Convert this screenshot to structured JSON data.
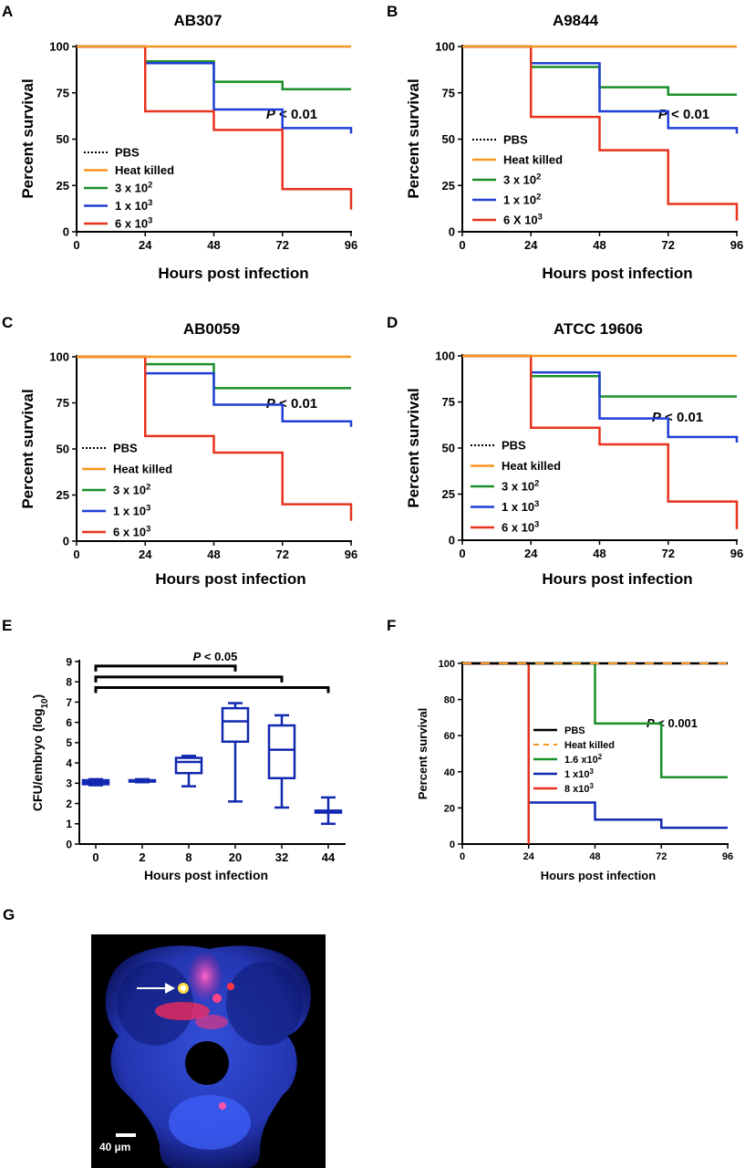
{
  "colors": {
    "pbs": "#000000",
    "heat_killed": "#F7941D",
    "green": "#1B8F2A",
    "blue": "#1F3FD6",
    "red": "#E8321E",
    "darkblue": "#1228B0"
  },
  "chart_data": [
    {
      "id": "A",
      "panel_letter": "A",
      "type": "line",
      "step": true,
      "title": "AB307",
      "xlabel": "Hours post infection",
      "ylabel": "Percent survival",
      "xlim": [
        0,
        96
      ],
      "ylim": [
        0,
        100
      ],
      "xticks": [
        "0",
        "24",
        "48",
        "72",
        "96"
      ],
      "yticks": [
        "0",
        "25",
        "50",
        "75",
        "100"
      ],
      "annotation": "P < 0.01",
      "legend_placement": "bottom-left",
      "series": [
        {
          "name": "PBS",
          "color_key": "pbs",
          "dashed": true,
          "points": [
            [
              0,
              100
            ],
            [
              96,
              100
            ]
          ]
        },
        {
          "name": "Heat killed",
          "color_key": "heat_killed",
          "points": [
            [
              0,
              100
            ],
            [
              96,
              100
            ]
          ]
        },
        {
          "name": "3 x 10",
          "sup": "2",
          "color_key": "green",
          "points": [
            [
              0,
              100
            ],
            [
              24,
              92
            ],
            [
              48,
              81
            ],
            [
              72,
              77
            ],
            [
              96,
              77
            ]
          ]
        },
        {
          "name": "1 x 10",
          "sup": "3",
          "color_key": "blue",
          "points": [
            [
              0,
              100
            ],
            [
              24,
              91
            ],
            [
              48,
              66
            ],
            [
              72,
              56
            ],
            [
              96,
              53
            ]
          ]
        },
        {
          "name": "6 x 10",
          "sup": "3",
          "color_key": "red",
          "points": [
            [
              0,
              100
            ],
            [
              24,
              65
            ],
            [
              48,
              55
            ],
            [
              72,
              23
            ],
            [
              96,
              12
            ]
          ]
        }
      ]
    },
    {
      "id": "B",
      "panel_letter": "B",
      "type": "line",
      "step": true,
      "title": "A9844",
      "xlabel": "Hours post infection",
      "ylabel": "Percent survival",
      "xlim": [
        0,
        96
      ],
      "ylim": [
        0,
        100
      ],
      "xticks": [
        "0",
        "24",
        "48",
        "72",
        "96"
      ],
      "yticks": [
        "0",
        "25",
        "50",
        "75",
        "100"
      ],
      "annotation": "P < 0.01",
      "legend_placement": "bottom-left",
      "series": [
        {
          "name": "PBS",
          "color_key": "pbs",
          "dashed": true,
          "points": [
            [
              0,
              100
            ],
            [
              96,
              100
            ]
          ]
        },
        {
          "name": "Heat killed",
          "color_key": "heat_killed",
          "points": [
            [
              0,
              100
            ],
            [
              96,
              100
            ]
          ]
        },
        {
          "name": "3 x 10",
          "sup": "2",
          "color_key": "green",
          "points": [
            [
              0,
              100
            ],
            [
              24,
              89
            ],
            [
              48,
              78
            ],
            [
              72,
              74
            ],
            [
              96,
              74
            ]
          ]
        },
        {
          "name": "1 x 10",
          "sup": "2",
          "color_key": "blue",
          "points": [
            [
              0,
              100
            ],
            [
              24,
              91
            ],
            [
              48,
              65
            ],
            [
              72,
              56
            ],
            [
              96,
              53
            ]
          ]
        },
        {
          "name": "6 X 10",
          "sup": "3",
          "color_key": "red",
          "points": [
            [
              0,
              100
            ],
            [
              24,
              62
            ],
            [
              48,
              44
            ],
            [
              72,
              15
            ],
            [
              96,
              6
            ]
          ]
        }
      ]
    },
    {
      "id": "C",
      "panel_letter": "C",
      "type": "line",
      "step": true,
      "title": "AB0059",
      "xlabel": "Hours post infection",
      "ylabel": "Percent survival",
      "xlim": [
        0,
        96
      ],
      "ylim": [
        0,
        100
      ],
      "xticks": [
        "0",
        "24",
        "48",
        "72",
        "96"
      ],
      "yticks": [
        "0",
        "25",
        "50",
        "75",
        "100"
      ],
      "annotation": "P < 0.01",
      "legend_placement": "bottom-left",
      "series": [
        {
          "name": "PBS",
          "color_key": "pbs",
          "dashed": true,
          "points": [
            [
              0,
              100
            ],
            [
              96,
              100
            ]
          ]
        },
        {
          "name": "Heat killed",
          "color_key": "heat_killed",
          "points": [
            [
              0,
              100
            ],
            [
              96,
              100
            ]
          ]
        },
        {
          "name": "3 x 10",
          "sup": "2",
          "color_key": "green",
          "points": [
            [
              0,
              100
            ],
            [
              24,
              96
            ],
            [
              48,
              83
            ],
            [
              72,
              83
            ],
            [
              96,
              83
            ]
          ]
        },
        {
          "name": "1 x 10",
          "sup": "3",
          "color_key": "blue",
          "points": [
            [
              0,
              100
            ],
            [
              24,
              91
            ],
            [
              48,
              74
            ],
            [
              72,
              65
            ],
            [
              96,
              62
            ]
          ]
        },
        {
          "name": "6 x 10",
          "sup": "3",
          "color_key": "red",
          "points": [
            [
              0,
              100
            ],
            [
              24,
              57
            ],
            [
              48,
              48
            ],
            [
              72,
              20
            ],
            [
              96,
              11
            ]
          ]
        }
      ]
    },
    {
      "id": "D",
      "panel_letter": "D",
      "type": "line",
      "step": true,
      "title": "ATCC 19606",
      "xlabel": "Hours post infection",
      "ylabel": "Percent survival",
      "xlim": [
        0,
        96
      ],
      "ylim": [
        0,
        100
      ],
      "xticks": [
        "0",
        "24",
        "48",
        "72",
        "96"
      ],
      "yticks": [
        "0",
        "25",
        "50",
        "75",
        "100"
      ],
      "annotation": "P < 0.01",
      "legend_placement": "bottom-left",
      "series": [
        {
          "name": "PBS",
          "color_key": "pbs",
          "dashed": true,
          "points": [
            [
              0,
              100
            ],
            [
              96,
              100
            ]
          ]
        },
        {
          "name": "Heat killed",
          "color_key": "heat_killed",
          "points": [
            [
              0,
              100
            ],
            [
              96,
              100
            ]
          ]
        },
        {
          "name": "3 x 10",
          "sup": "2",
          "color_key": "green",
          "points": [
            [
              0,
              100
            ],
            [
              24,
              89
            ],
            [
              48,
              78
            ],
            [
              72,
              78
            ],
            [
              96,
              78
            ]
          ]
        },
        {
          "name": "1 x 10",
          "sup": "3",
          "color_key": "blue",
          "points": [
            [
              0,
              100
            ],
            [
              24,
              91
            ],
            [
              48,
              66
            ],
            [
              72,
              56
            ],
            [
              96,
              53
            ]
          ]
        },
        {
          "name": "6 x 10",
          "sup": "3",
          "color_key": "red",
          "points": [
            [
              0,
              100
            ],
            [
              24,
              61
            ],
            [
              48,
              52
            ],
            [
              72,
              21
            ],
            [
              96,
              6
            ]
          ]
        }
      ]
    },
    {
      "id": "E",
      "panel_letter": "E",
      "type": "box",
      "xlabel": "Hours post infection",
      "ylabel": "CFU/embryo (log",
      "ylabel_sub": "10",
      "ylabel_end": ")",
      "ylim": [
        0,
        9
      ],
      "yticks": [
        "0",
        "1",
        "2",
        "3",
        "4",
        "5",
        "6",
        "7",
        "8",
        "9"
      ],
      "categories": [
        "0",
        "2",
        "8",
        "20",
        "32",
        "44"
      ],
      "annotation": "P < 0.05",
      "significance_brackets": [
        [
          "0",
          "20"
        ],
        [
          "0",
          "32"
        ],
        [
          "0",
          "44"
        ]
      ],
      "color_key": "darkblue",
      "boxes": [
        {
          "min": 2.9,
          "q1": 2.95,
          "median": 3.05,
          "q3": 3.15,
          "max": 3.2
        },
        {
          "min": 3.05,
          "q1": 3.08,
          "median": 3.12,
          "q3": 3.15,
          "max": 3.2
        },
        {
          "min": 2.85,
          "q1": 3.5,
          "median": 4.05,
          "q3": 4.25,
          "max": 4.35
        },
        {
          "min": 2.1,
          "q1": 5.05,
          "median": 6.05,
          "q3": 6.7,
          "max": 6.95
        },
        {
          "min": 1.8,
          "q1": 3.25,
          "median": 4.65,
          "q3": 5.85,
          "max": 6.35
        },
        {
          "min": 1.0,
          "q1": 1.55,
          "median": 1.6,
          "q3": 1.65,
          "max": 2.3
        }
      ]
    },
    {
      "id": "F",
      "panel_letter": "F",
      "type": "line",
      "step": true,
      "xlabel": "Hours post infection",
      "ylabel": "Percent survival",
      "xlim": [
        0,
        96
      ],
      "ylim": [
        0,
        100
      ],
      "xticks": [
        "0",
        "24",
        "48",
        "72",
        "96"
      ],
      "yticks": [
        "0",
        "20",
        "40",
        "60",
        "80",
        "100"
      ],
      "annotation": "P < 0.001",
      "legend_placement": "right-middle",
      "series": [
        {
          "name": "PBS",
          "color_key": "pbs",
          "points": [
            [
              0,
              100
            ],
            [
              96,
              100
            ]
          ]
        },
        {
          "name": "Heat killed",
          "color_key": "heat_killed",
          "dashed": true,
          "points": [
            [
              0,
              100
            ],
            [
              96,
              100
            ]
          ]
        },
        {
          "name": "1.6 x10",
          "sup": "2",
          "color_key": "green",
          "points": [
            [
              0,
              100
            ],
            [
              48,
              66.7
            ],
            [
              72,
              37
            ],
            [
              96,
              37
            ]
          ]
        },
        {
          "name": "1 x10",
          "sup": "3",
          "color_key": "darkblue",
          "points": [
            [
              0,
              100
            ],
            [
              24,
              23
            ],
            [
              48,
              13.5
            ],
            [
              72,
              9
            ],
            [
              96,
              9
            ]
          ]
        },
        {
          "name": "8 x10",
          "sup": "3",
          "color_key": "red",
          "points": [
            [
              0,
              100
            ],
            [
              24,
              0
            ]
          ]
        }
      ]
    }
  ],
  "image_panel": {
    "panel_letter": "G",
    "scale_bar_label": "40 µm",
    "description_icon": "zebrafish-fluorescence-micrograph"
  }
}
